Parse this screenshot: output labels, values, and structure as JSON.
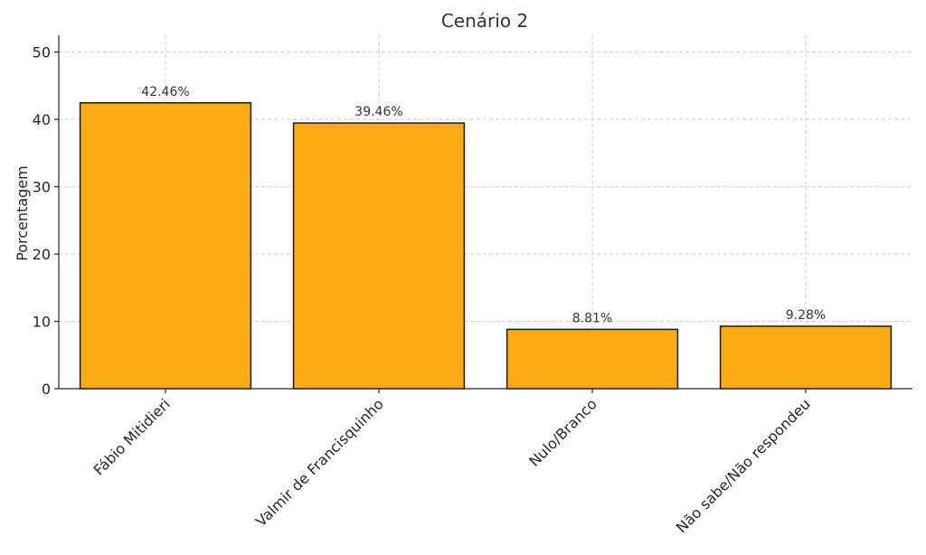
{
  "chart_data": {
    "type": "bar",
    "title": "Cenário 2",
    "xlabel": "",
    "ylabel": "Porcentagem",
    "categories": [
      "Fábio Mitidieri",
      "Valmir de Francisquinho",
      "Nulo/Branco",
      "Não sabe/Não respondeu"
    ],
    "values": [
      42.46,
      39.46,
      8.81,
      9.28
    ],
    "value_labels": [
      "42.46%",
      "39.46%",
      "8.81%",
      "9.28%"
    ],
    "ylim": [
      0,
      52.5
    ],
    "yticks": [
      0,
      10,
      20,
      30,
      40,
      50
    ],
    "ytick_labels": [
      "0",
      "10",
      "20",
      "30",
      "40",
      "50"
    ],
    "grid": true,
    "bar_color": "#fcab14"
  }
}
